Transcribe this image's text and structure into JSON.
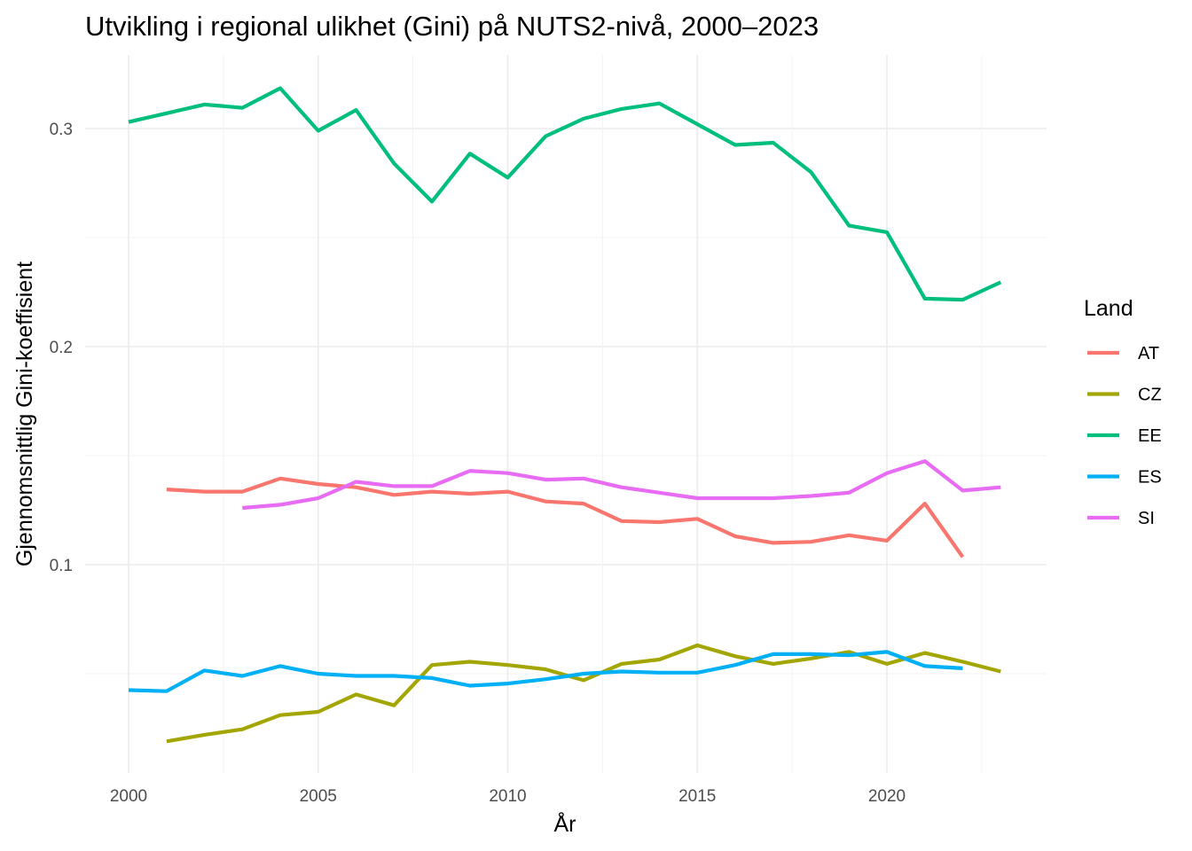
{
  "chart_data": {
    "type": "line",
    "title": "Utvikling i regional ulikhet (Gini) på NUTS2-nivå, 2000–2023",
    "xlabel": "År",
    "ylabel": "Gjennomsnittlig Gini-koeffisient",
    "xlim": [
      2000,
      2023
    ],
    "ylim": [
      0.0,
      0.3
    ],
    "x_ticks": [
      2000,
      2005,
      2010,
      2015,
      2020
    ],
    "x_tick_labels": [
      "2000",
      "2005",
      "2010",
      "2015",
      "2020"
    ],
    "y_ticks": [
      0.1,
      0.2,
      0.3
    ],
    "y_tick_labels": [
      "0.1",
      "0.2",
      "0.3"
    ],
    "grid": true,
    "legend": {
      "title": "Land",
      "position": "right"
    },
    "series": [
      {
        "name": "AT",
        "color": "#F8766D",
        "x": [
          2001,
          2002,
          2003,
          2004,
          2005,
          2006,
          2007,
          2008,
          2009,
          2010,
          2011,
          2012,
          2013,
          2014,
          2015,
          2016,
          2017,
          2018,
          2019,
          2020,
          2021,
          2022
        ],
        "values": [
          0.1345,
          0.1335,
          0.1335,
          0.1395,
          0.137,
          0.1355,
          0.132,
          0.1335,
          0.1325,
          0.1335,
          0.129,
          0.128,
          0.12,
          0.1195,
          0.121,
          0.113,
          0.11,
          0.1105,
          0.1135,
          0.111,
          0.128,
          0.1035
        ]
      },
      {
        "name": "CZ",
        "color": "#A3A500",
        "x": [
          2001,
          2002,
          2003,
          2004,
          2005,
          2006,
          2007,
          2008,
          2009,
          2010,
          2011,
          2012,
          2013,
          2014,
          2015,
          2016,
          2017,
          2018,
          2019,
          2020,
          2021,
          2022,
          2023
        ],
        "values": [
          0.019,
          0.022,
          0.0245,
          0.031,
          0.0325,
          0.0405,
          0.0355,
          0.054,
          0.0555,
          0.054,
          0.052,
          0.047,
          0.0545,
          0.0565,
          0.063,
          0.058,
          0.0545,
          0.057,
          0.06,
          0.0545,
          0.0595,
          0.0555,
          0.051
        ]
      },
      {
        "name": "EE",
        "color": "#00BF7D",
        "x": [
          2000,
          2001,
          2002,
          2003,
          2004,
          2005,
          2006,
          2007,
          2008,
          2009,
          2010,
          2011,
          2012,
          2013,
          2014,
          2015,
          2016,
          2017,
          2018,
          2019,
          2020,
          2021,
          2022,
          2023
        ],
        "values": [
          0.303,
          0.307,
          0.311,
          0.3095,
          0.3185,
          0.299,
          0.3085,
          0.284,
          0.2665,
          0.2885,
          0.2775,
          0.2965,
          0.3045,
          0.309,
          0.3115,
          0.302,
          0.2925,
          0.2935,
          0.28,
          0.2555,
          0.2525,
          0.222,
          0.2215,
          0.2295
        ]
      },
      {
        "name": "ES",
        "color": "#00B0F6",
        "x": [
          2000,
          2001,
          2002,
          2003,
          2004,
          2005,
          2006,
          2007,
          2008,
          2009,
          2010,
          2011,
          2012,
          2013,
          2014,
          2015,
          2016,
          2017,
          2018,
          2019,
          2020,
          2021,
          2022
        ],
        "values": [
          0.0425,
          0.042,
          0.0515,
          0.049,
          0.0535,
          0.05,
          0.049,
          0.049,
          0.048,
          0.0445,
          0.0455,
          0.0475,
          0.05,
          0.051,
          0.0505,
          0.0505,
          0.054,
          0.059,
          0.059,
          0.0585,
          0.06,
          0.0535,
          0.0525
        ]
      },
      {
        "name": "SI",
        "color": "#E76BF3",
        "x": [
          2003,
          2004,
          2005,
          2006,
          2007,
          2008,
          2009,
          2010,
          2011,
          2012,
          2013,
          2014,
          2015,
          2016,
          2017,
          2018,
          2019,
          2020,
          2021,
          2022,
          2023
        ],
        "values": [
          0.126,
          0.1275,
          0.1305,
          0.138,
          0.136,
          0.136,
          0.143,
          0.142,
          0.139,
          0.1395,
          0.1355,
          0.133,
          0.1305,
          0.1305,
          0.1305,
          0.1315,
          0.133,
          0.142,
          0.1475,
          0.134,
          0.1355
        ]
      }
    ]
  }
}
